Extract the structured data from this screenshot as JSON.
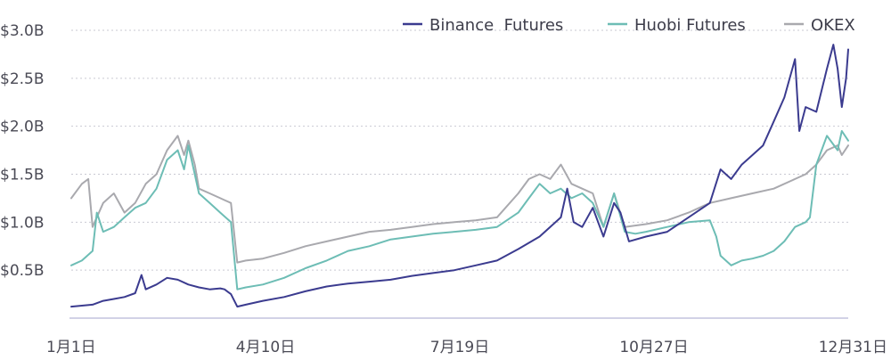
{
  "chart_data": {
    "type": "line",
    "x_ticks": [
      "1月1日",
      "4月10日",
      "7月19日",
      "10月27日",
      "12月31日"
    ],
    "y_ticks": [
      "$0.5B",
      "$1.0B",
      "$1.5B",
      "$2.0B",
      "$2.5B",
      "$3.0B"
    ],
    "ylim": [
      0,
      3.0
    ],
    "grid": true,
    "legend_position": "top-right",
    "series": [
      {
        "name": "Binance  Futures",
        "color": "#3b3b8f",
        "points": [
          [
            0,
            0.12
          ],
          [
            5,
            0.13
          ],
          [
            10,
            0.14
          ],
          [
            15,
            0.18
          ],
          [
            20,
            0.2
          ],
          [
            25,
            0.22
          ],
          [
            30,
            0.26
          ],
          [
            33,
            0.45
          ],
          [
            35,
            0.3
          ],
          [
            40,
            0.35
          ],
          [
            45,
            0.42
          ],
          [
            50,
            0.4
          ],
          [
            55,
            0.35
          ],
          [
            60,
            0.32
          ],
          [
            65,
            0.3
          ],
          [
            70,
            0.31
          ],
          [
            72,
            0.3
          ],
          [
            75,
            0.25
          ],
          [
            78,
            0.12
          ],
          [
            82,
            0.14
          ],
          [
            90,
            0.18
          ],
          [
            100,
            0.22
          ],
          [
            110,
            0.28
          ],
          [
            120,
            0.33
          ],
          [
            130,
            0.36
          ],
          [
            140,
            0.38
          ],
          [
            150,
            0.4
          ],
          [
            160,
            0.44
          ],
          [
            170,
            0.47
          ],
          [
            180,
            0.5
          ],
          [
            190,
            0.55
          ],
          [
            200,
            0.6
          ],
          [
            210,
            0.72
          ],
          [
            220,
            0.85
          ],
          [
            225,
            0.95
          ],
          [
            230,
            1.05
          ],
          [
            233,
            1.35
          ],
          [
            236,
            1.0
          ],
          [
            240,
            0.95
          ],
          [
            245,
            1.15
          ],
          [
            250,
            0.85
          ],
          [
            255,
            1.2
          ],
          [
            258,
            1.1
          ],
          [
            262,
            0.8
          ],
          [
            270,
            0.85
          ],
          [
            280,
            0.9
          ],
          [
            290,
            1.05
          ],
          [
            300,
            1.2
          ],
          [
            305,
            1.55
          ],
          [
            310,
            1.45
          ],
          [
            315,
            1.6
          ],
          [
            320,
            1.7
          ],
          [
            325,
            1.8
          ],
          [
            330,
            2.05
          ],
          [
            335,
            2.3
          ],
          [
            340,
            2.7
          ],
          [
            342,
            1.95
          ],
          [
            345,
            2.2
          ],
          [
            350,
            2.15
          ],
          [
            355,
            2.6
          ],
          [
            358,
            2.85
          ],
          [
            360,
            2.6
          ],
          [
            362,
            2.2
          ],
          [
            364,
            2.5
          ],
          [
            365,
            2.8
          ]
        ]
      },
      {
        "name": "Huobi Futures",
        "color": "#6dbdb5",
        "points": [
          [
            0,
            0.55
          ],
          [
            5,
            0.6
          ],
          [
            10,
            0.7
          ],
          [
            12,
            1.1
          ],
          [
            15,
            0.9
          ],
          [
            20,
            0.95
          ],
          [
            25,
            1.05
          ],
          [
            30,
            1.15
          ],
          [
            35,
            1.2
          ],
          [
            40,
            1.35
          ],
          [
            45,
            1.65
          ],
          [
            50,
            1.75
          ],
          [
            53,
            1.55
          ],
          [
            55,
            1.8
          ],
          [
            58,
            1.5
          ],
          [
            60,
            1.3
          ],
          [
            65,
            1.2
          ],
          [
            70,
            1.1
          ],
          [
            75,
            1.0
          ],
          [
            78,
            0.3
          ],
          [
            82,
            0.32
          ],
          [
            90,
            0.35
          ],
          [
            100,
            0.42
          ],
          [
            110,
            0.52
          ],
          [
            120,
            0.6
          ],
          [
            130,
            0.7
          ],
          [
            140,
            0.75
          ],
          [
            150,
            0.82
          ],
          [
            160,
            0.85
          ],
          [
            170,
            0.88
          ],
          [
            180,
            0.9
          ],
          [
            190,
            0.92
          ],
          [
            200,
            0.95
          ],
          [
            210,
            1.1
          ],
          [
            215,
            1.25
          ],
          [
            220,
            1.4
          ],
          [
            225,
            1.3
          ],
          [
            230,
            1.35
          ],
          [
            235,
            1.25
          ],
          [
            240,
            1.3
          ],
          [
            245,
            1.2
          ],
          [
            250,
            0.95
          ],
          [
            255,
            1.3
          ],
          [
            260,
            0.9
          ],
          [
            265,
            0.88
          ],
          [
            270,
            0.9
          ],
          [
            280,
            0.95
          ],
          [
            290,
            1.0
          ],
          [
            300,
            1.02
          ],
          [
            303,
            0.85
          ],
          [
            305,
            0.65
          ],
          [
            310,
            0.55
          ],
          [
            315,
            0.6
          ],
          [
            320,
            0.62
          ],
          [
            325,
            0.65
          ],
          [
            330,
            0.7
          ],
          [
            335,
            0.8
          ],
          [
            340,
            0.95
          ],
          [
            345,
            1.0
          ],
          [
            347,
            1.05
          ],
          [
            350,
            1.6
          ],
          [
            355,
            1.9
          ],
          [
            360,
            1.75
          ],
          [
            362,
            1.95
          ],
          [
            365,
            1.85
          ]
        ]
      },
      {
        "name": "OKEX",
        "color": "#a9a9ae",
        "points": [
          [
            0,
            1.25
          ],
          [
            5,
            1.4
          ],
          [
            8,
            1.45
          ],
          [
            10,
            0.95
          ],
          [
            15,
            1.2
          ],
          [
            20,
            1.3
          ],
          [
            25,
            1.1
          ],
          [
            30,
            1.2
          ],
          [
            35,
            1.4
          ],
          [
            40,
            1.5
          ],
          [
            45,
            1.75
          ],
          [
            50,
            1.9
          ],
          [
            53,
            1.7
          ],
          [
            55,
            1.85
          ],
          [
            58,
            1.6
          ],
          [
            60,
            1.35
          ],
          [
            65,
            1.3
          ],
          [
            70,
            1.25
          ],
          [
            75,
            1.2
          ],
          [
            78,
            0.58
          ],
          [
            82,
            0.6
          ],
          [
            90,
            0.62
          ],
          [
            100,
            0.68
          ],
          [
            110,
            0.75
          ],
          [
            120,
            0.8
          ],
          [
            130,
            0.85
          ],
          [
            140,
            0.9
          ],
          [
            150,
            0.92
          ],
          [
            160,
            0.95
          ],
          [
            170,
            0.98
          ],
          [
            180,
            1.0
          ],
          [
            190,
            1.02
          ],
          [
            200,
            1.05
          ],
          [
            210,
            1.3
          ],
          [
            215,
            1.45
          ],
          [
            220,
            1.5
          ],
          [
            225,
            1.45
          ],
          [
            230,
            1.6
          ],
          [
            235,
            1.4
          ],
          [
            240,
            1.35
          ],
          [
            245,
            1.3
          ],
          [
            250,
            0.95
          ],
          [
            255,
            1.3
          ],
          [
            260,
            0.95
          ],
          [
            270,
            0.98
          ],
          [
            280,
            1.02
          ],
          [
            290,
            1.1
          ],
          [
            300,
            1.2
          ],
          [
            310,
            1.25
          ],
          [
            320,
            1.3
          ],
          [
            330,
            1.35
          ],
          [
            340,
            1.45
          ],
          [
            345,
            1.5
          ],
          [
            350,
            1.6
          ],
          [
            355,
            1.75
          ],
          [
            360,
            1.8
          ],
          [
            362,
            1.7
          ],
          [
            365,
            1.8
          ]
        ]
      }
    ]
  }
}
